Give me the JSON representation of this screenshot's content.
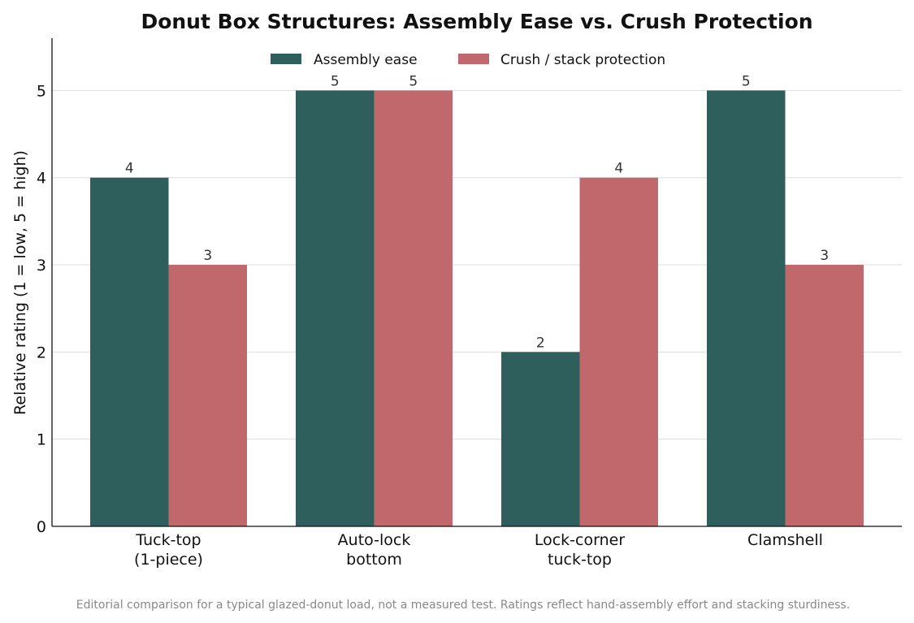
{
  "chart_data": {
    "type": "bar",
    "title": "Donut Box Structures: Assembly Ease vs. Crush Protection",
    "ylabel": "Relative rating (1 = low, 5 = high)",
    "xlabel": "",
    "ylim": [
      0,
      5.6
    ],
    "yticks": [
      0,
      1,
      2,
      3,
      4,
      5
    ],
    "grid": "y",
    "legend_position": "top-center",
    "categories": [
      [
        "Tuck-top",
        "(1-piece)"
      ],
      [
        "Auto-lock",
        "bottom"
      ],
      [
        "Lock-corner",
        "tuck-top"
      ],
      [
        "Clamshell"
      ]
    ],
    "series": [
      {
        "name": "Assembly ease",
        "color": "#2e5f5c",
        "values": [
          4,
          5,
          2,
          5
        ]
      },
      {
        "name": "Crush / stack protection",
        "color": "#c0686b",
        "values": [
          3,
          5,
          4,
          3
        ]
      }
    ],
    "note": "Editorial comparison for a typical glazed-donut load, not a measured test. Ratings reflect hand-assembly effort and stacking sturdiness."
  }
}
